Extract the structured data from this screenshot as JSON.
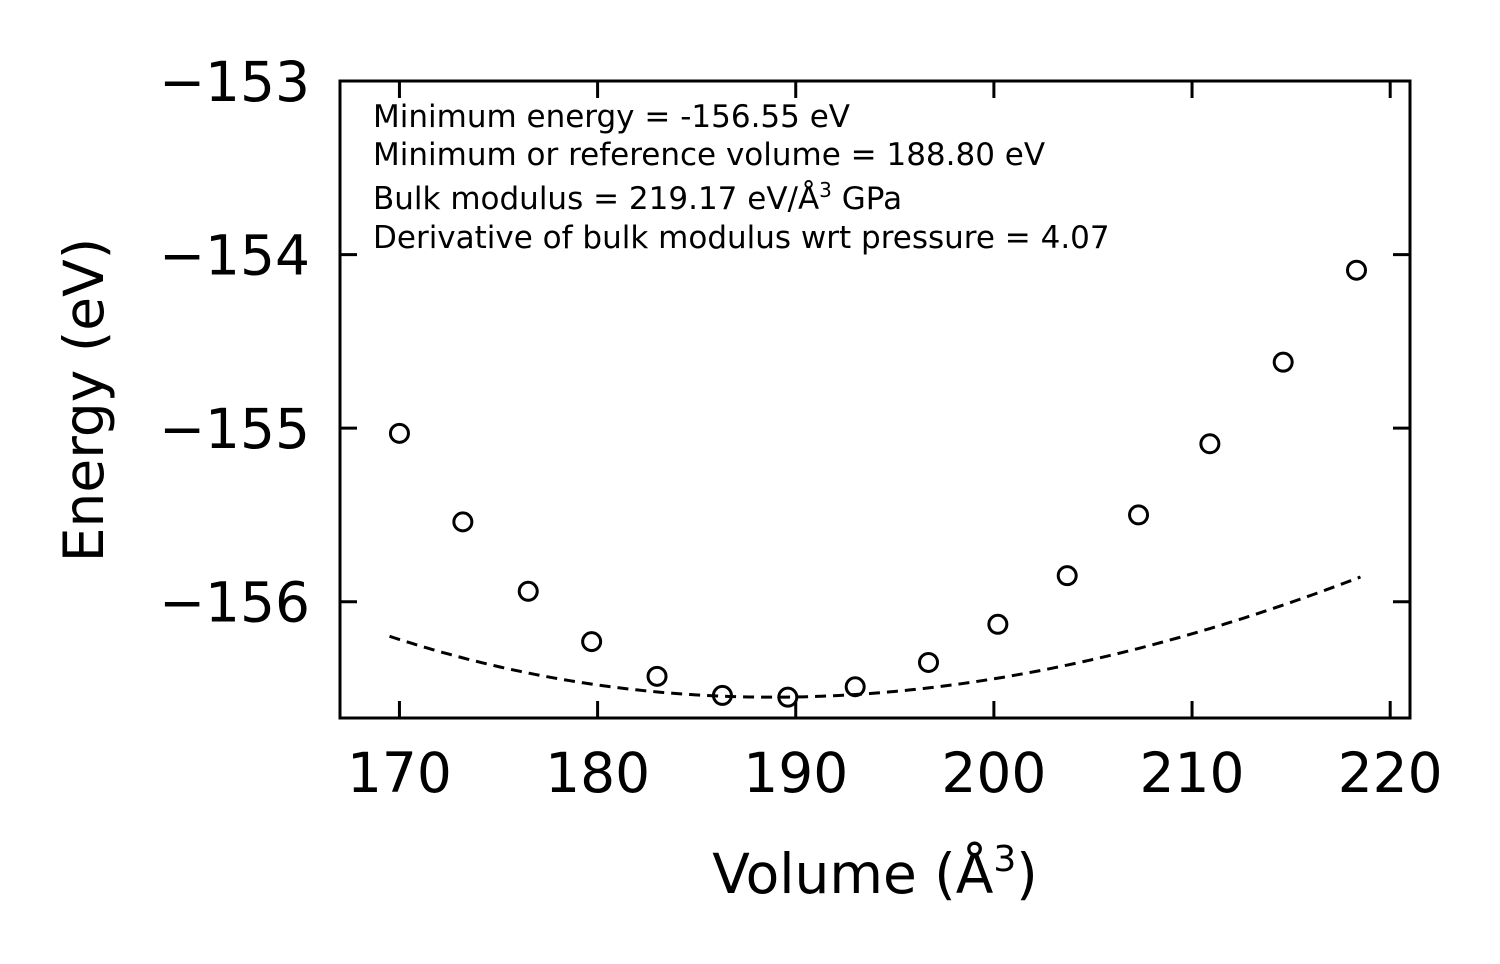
{
  "chart_data": {
    "type": "scatter",
    "title": "",
    "xlabel": "Volume (Å",
    "xlabel_sup": "3",
    "xlabel_end": ")",
    "ylabel": "Energy (eV)",
    "xlim": [
      167,
      221
    ],
    "ylim": [
      -156.67,
      -153
    ],
    "xticks": [
      170,
      180,
      190,
      200,
      210,
      220
    ],
    "xtick_labels": [
      "170",
      "180",
      "190",
      "200",
      "210",
      "220"
    ],
    "yticks": [
      -156,
      -155,
      -154,
      -153
    ],
    "ytick_labels": [
      "−156",
      "−155",
      "−154",
      "−153"
    ],
    "grid": false,
    "series": [
      {
        "name": "data",
        "style": "open-circle",
        "x": [
          170.0,
          173.2,
          176.5,
          179.7,
          183.0,
          186.3,
          189.6,
          193.0,
          196.7,
          200.2,
          203.7,
          207.3,
          210.9,
          214.6,
          218.3
        ],
        "y": [
          -155.03,
          -155.54,
          -155.94,
          -156.23,
          -156.43,
          -156.54,
          -156.55,
          -156.49,
          -156.35,
          -156.13,
          -155.85,
          -155.5,
          -155.09,
          -154.62,
          -154.09
        ]
      },
      {
        "name": "fit",
        "style": "dashed-line",
        "fit": {
          "E0": -156.55,
          "V0": 188.8,
          "a2": 0.00088,
          "a3": -3.2e-06
        },
        "x_range": [
          169.5,
          218.5
        ]
      }
    ],
    "annotations": [
      {
        "text": "Minimum energy = -156.55 eV"
      },
      {
        "text": "Minimum or reference volume = 188.80 eV"
      },
      {
        "text": "Bulk modulus = 219.17 eV/Å",
        "sup": "3",
        "tail": " GPa"
      },
      {
        "text": "Derivative of bulk modulus wrt pressure = 4.07"
      }
    ]
  }
}
